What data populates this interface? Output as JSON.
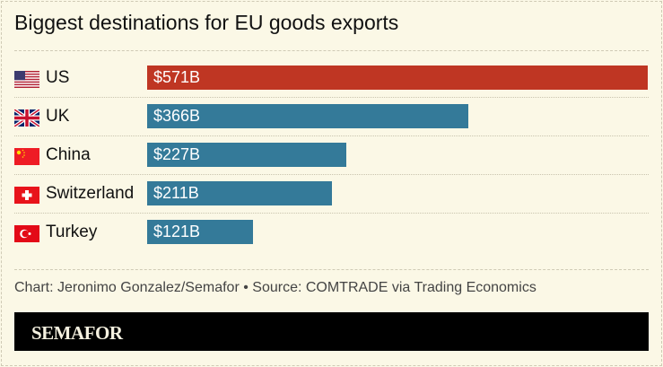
{
  "chart_data": {
    "type": "bar",
    "orientation": "horizontal",
    "title": "Biggest destinations for EU goods exports",
    "categories": [
      "US",
      "UK",
      "China",
      "Switzerland",
      "Turkey"
    ],
    "values": [
      571,
      366,
      227,
      211,
      121
    ],
    "value_labels": [
      "$571B",
      "$366B",
      "$227B",
      "$211B",
      "$121B"
    ],
    "flags": [
      "us-flag-icon",
      "uk-flag-icon",
      "china-flag-icon",
      "switzerland-flag-icon",
      "turkey-flag-icon"
    ],
    "colors": {
      "highlight": "#bf3623",
      "default": "#347a99"
    },
    "grid": false
  },
  "footer": {
    "credit": "Chart: Jeronimo Gonzalez/Semafor • Source: COMTRADE via Trading Economics"
  },
  "brand": {
    "logo": "SEMAFOR"
  }
}
